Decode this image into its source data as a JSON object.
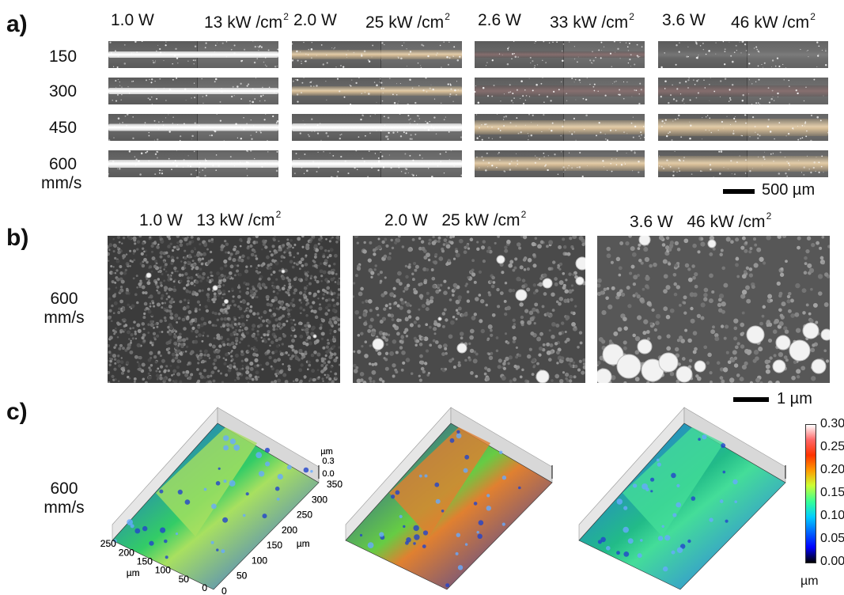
{
  "panels": {
    "a": {
      "label": "a)",
      "headers": [
        {
          "power": "1.0 W",
          "intensity": "13 kW /cm",
          "exp": "2"
        },
        {
          "power": "2.0 W",
          "intensity": "25 kW /cm",
          "exp": "2"
        },
        {
          "power": "2.6 W",
          "intensity": "33 kW /cm",
          "exp": "2"
        },
        {
          "power": "3.6 W",
          "intensity": "46 kW /cm",
          "exp": "2"
        }
      ],
      "rows": [
        "150",
        "300",
        "450",
        "600"
      ],
      "speed_unit": "mm/s",
      "scalebar": "500 µm"
    },
    "b": {
      "label": "b)",
      "headers": [
        {
          "power": "1.0 W",
          "intensity": "13 kW /cm",
          "exp": "2"
        },
        {
          "power": "2.0 W",
          "intensity": "25 kW /cm",
          "exp": "2"
        },
        {
          "power": "3.6 W",
          "intensity": "46 kW /cm",
          "exp": "2"
        }
      ],
      "speed": "600",
      "speed_unit": "mm/s",
      "scalebar": "1 µm"
    },
    "c": {
      "label": "c)",
      "speed": "600",
      "speed_unit": "mm/s",
      "z_unit": "µm",
      "z_ticks": [
        "0.3",
        "0.0"
      ],
      "x_ticks": [
        "0",
        "50",
        "100",
        "150",
        "200",
        "250",
        "300",
        "350"
      ],
      "y_ticks": [
        "0",
        "50",
        "100",
        "150",
        "200",
        "250"
      ],
      "axis_unit": "µm",
      "colorbar": {
        "ticks": [
          "0.30",
          "0.25",
          "0.20",
          "0.15",
          "0.10",
          "0.05",
          "0.00"
        ],
        "unit": "µm",
        "colors": [
          "#000000",
          "#0000ff",
          "#0066ff",
          "#00ccff",
          "#33ff99",
          "#ccff33",
          "#ff9900",
          "#ff3300",
          "#ff6666",
          "#ffffff"
        ]
      }
    }
  }
}
